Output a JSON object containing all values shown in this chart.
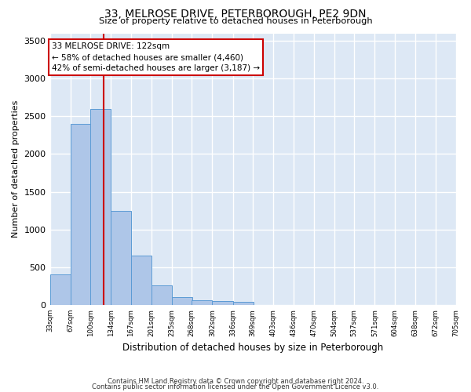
{
  "title1": "33, MELROSE DRIVE, PETERBOROUGH, PE2 9DN",
  "title2": "Size of property relative to detached houses in Peterborough",
  "xlabel": "Distribution of detached houses by size in Peterborough",
  "ylabel": "Number of detached properties",
  "bins": [
    33,
    67,
    100,
    134,
    167,
    201,
    235,
    268,
    302,
    336,
    369,
    403,
    436,
    470,
    504,
    537,
    571,
    604,
    638,
    672,
    705
  ],
  "counts": [
    400,
    2400,
    2600,
    1250,
    650,
    260,
    100,
    60,
    55,
    40,
    0,
    0,
    0,
    0,
    0,
    0,
    0,
    0,
    0,
    0
  ],
  "bar_color": "#aec6e8",
  "bar_edge_color": "#5b9bd5",
  "vline_x": 122,
  "vline_color": "#cc0000",
  "annotation_line1": "33 MELROSE DRIVE: 122sqm",
  "annotation_line2": "← 58% of detached houses are smaller (4,460)",
  "annotation_line3": "42% of semi-detached houses are larger (3,187) →",
  "annotation_box_color": "#cc0000",
  "ylim": [
    0,
    3600
  ],
  "yticks": [
    0,
    500,
    1000,
    1500,
    2000,
    2500,
    3000,
    3500
  ],
  "bg_color": "#dde8f5",
  "grid_color": "#ffffff",
  "footer1": "Contains HM Land Registry data © Crown copyright and database right 2024.",
  "footer2": "Contains public sector information licensed under the Open Government Licence v3.0."
}
